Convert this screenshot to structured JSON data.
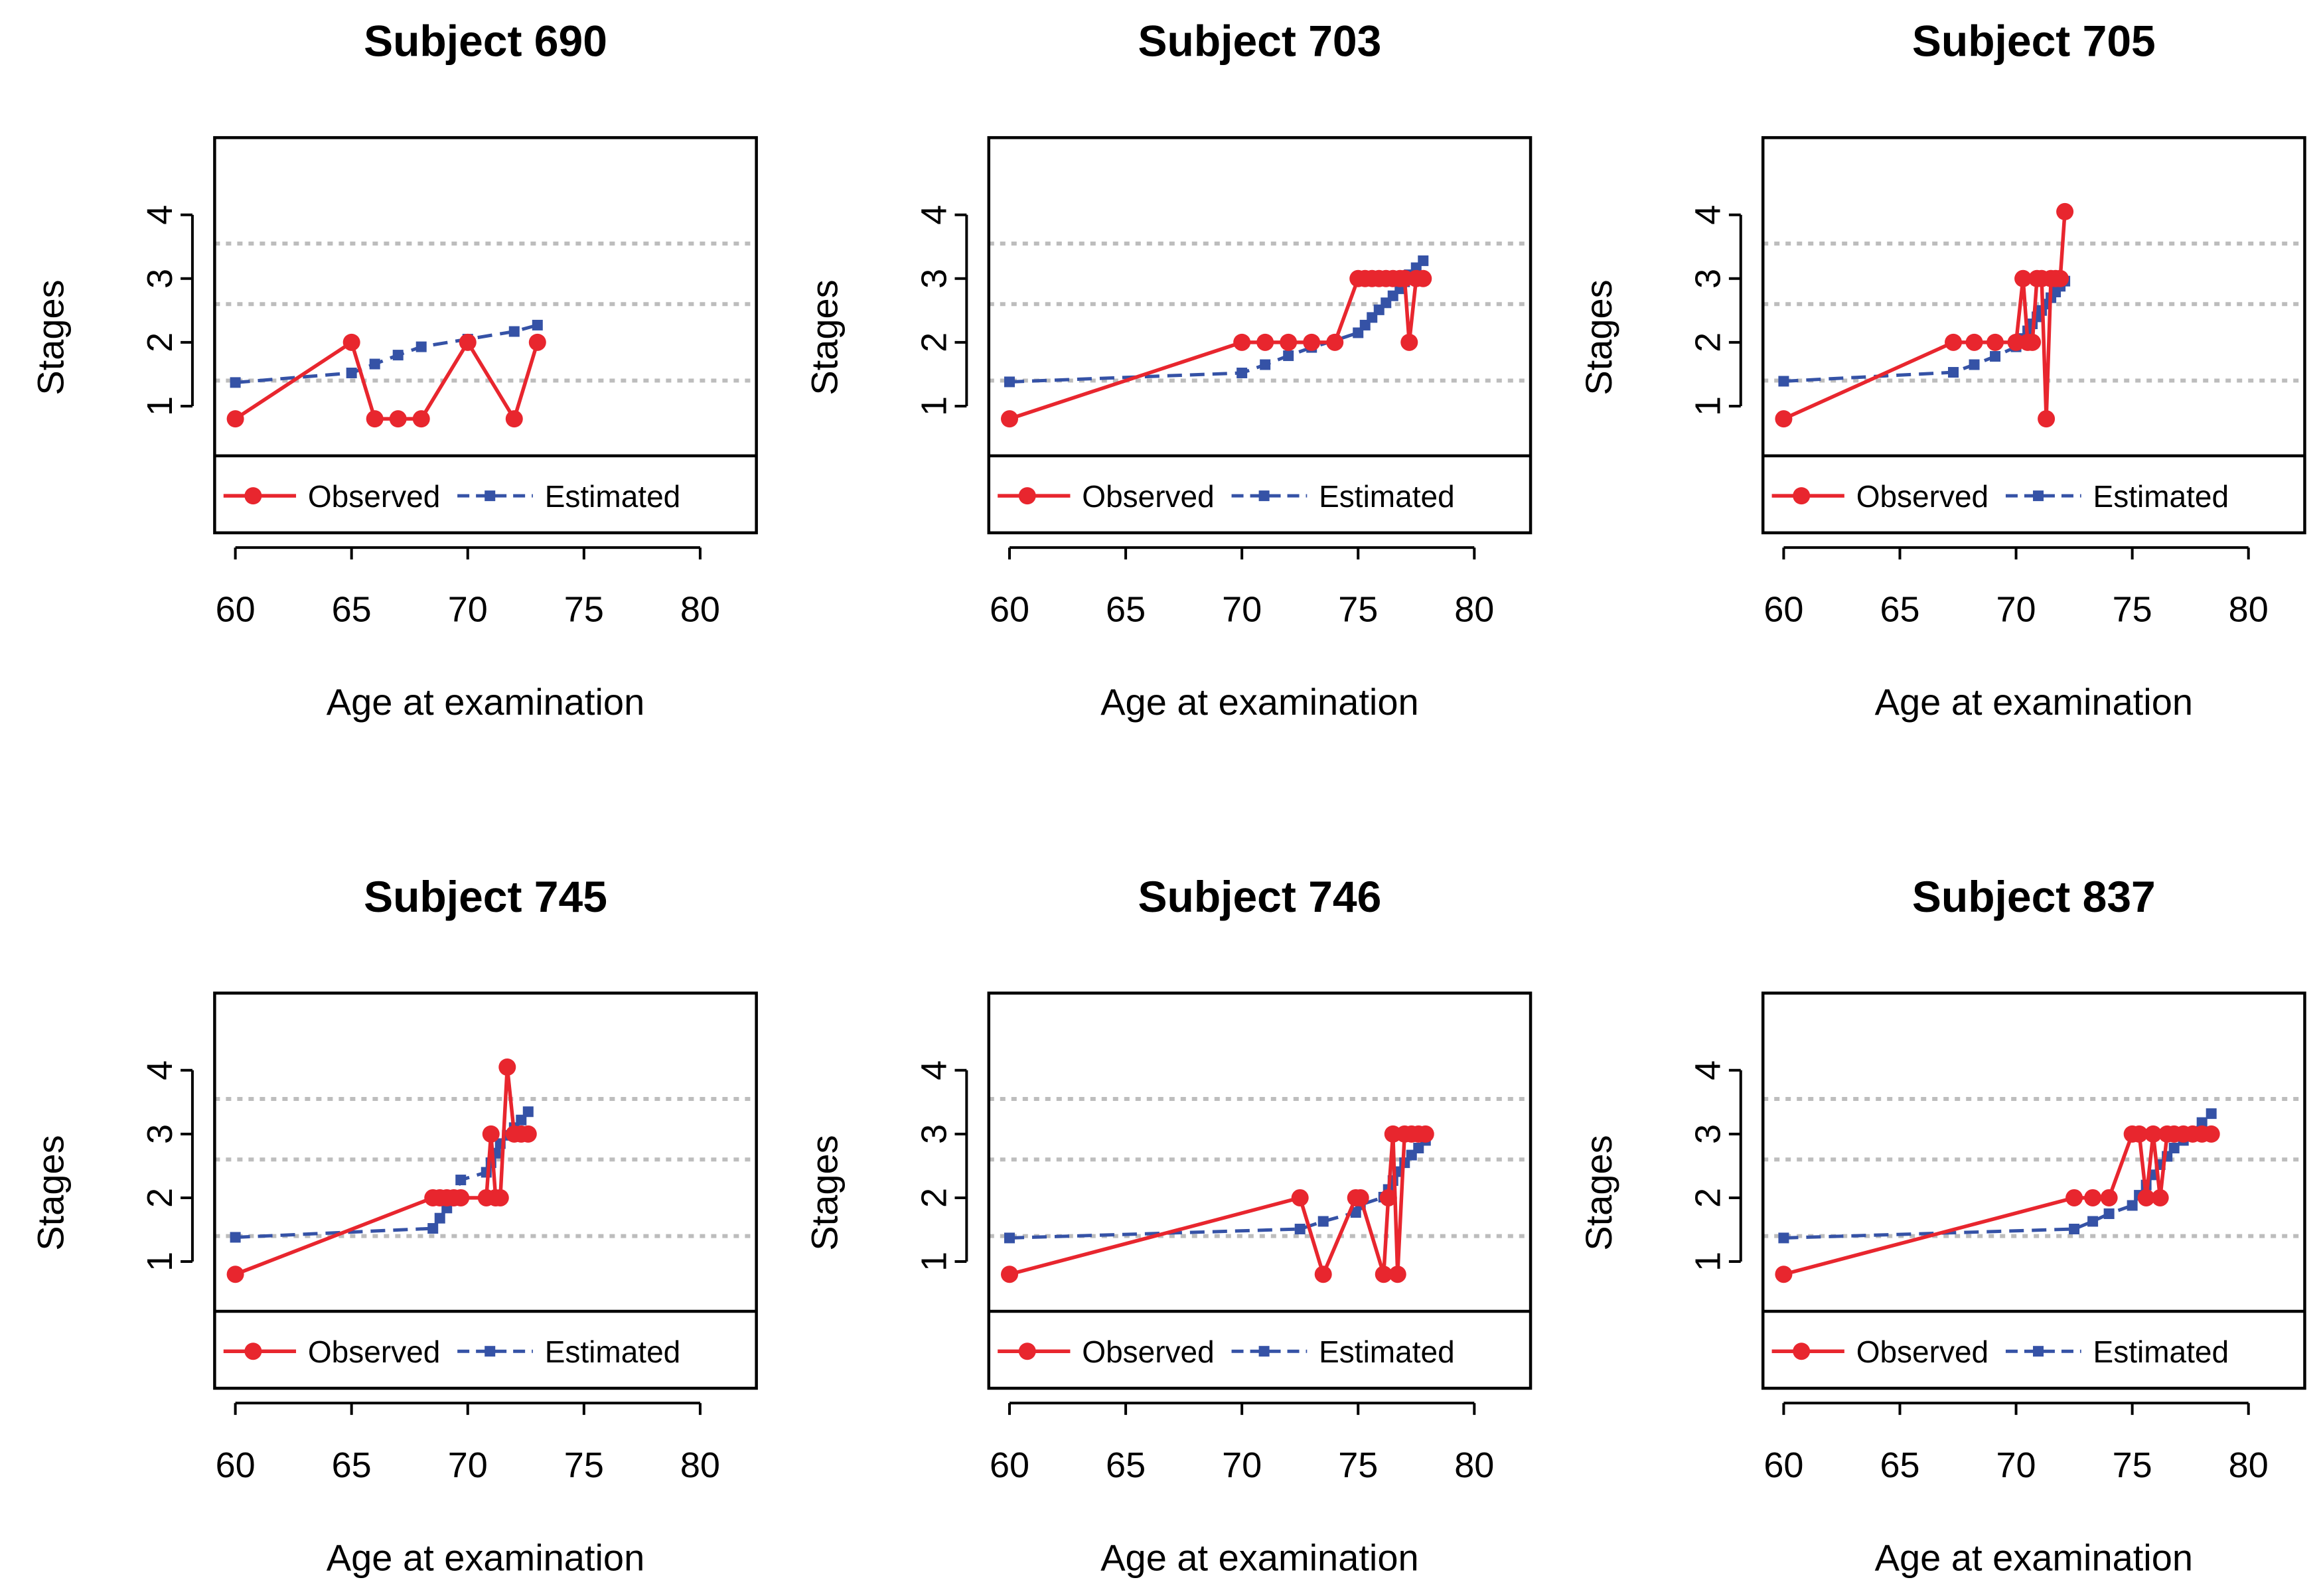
{
  "figure": {
    "colors": {
      "observed": "#e8262e",
      "estimated": "#3552a6",
      "threshold": "#bdbdbd",
      "frame": "#000000"
    }
  },
  "chart_data": [
    {
      "type": "line",
      "title": "Subject 690",
      "xlabel": "Age at examination",
      "ylabel": "Stages",
      "xlim": [
        60,
        80
      ],
      "x_ticks": [
        "60",
        "65",
        "70",
        "75",
        "80"
      ],
      "y_ticks": [
        "1",
        "2",
        "3",
        "4"
      ],
      "thresholds": [
        1.4,
        2.6,
        3.55
      ],
      "legend": {
        "observed": "Observed",
        "estimated": "Estimated"
      },
      "series": [
        {
          "name": "Observed",
          "x": [
            60,
            65,
            66,
            67,
            68,
            70,
            72,
            73
          ],
          "values": [
            0.8,
            2.0,
            0.8,
            0.8,
            0.8,
            2.0,
            0.8,
            2.0
          ]
        },
        {
          "name": "Estimated",
          "x": [
            60,
            65,
            66,
            67,
            68,
            70,
            72,
            73
          ],
          "values": [
            1.37,
            1.52,
            1.66,
            1.8,
            1.93,
            2.05,
            2.17,
            2.27
          ]
        }
      ]
    },
    {
      "type": "line",
      "title": "Subject 703",
      "xlabel": "Age at examination",
      "ylabel": "Stages",
      "xlim": [
        60,
        80
      ],
      "x_ticks": [
        "60",
        "65",
        "70",
        "75",
        "80"
      ],
      "y_ticks": [
        "1",
        "2",
        "3",
        "4"
      ],
      "thresholds": [
        1.4,
        2.6,
        3.55
      ],
      "legend": {
        "observed": "Observed",
        "estimated": "Estimated"
      },
      "series": [
        {
          "name": "Observed",
          "x": [
            60,
            70,
            71,
            72,
            73,
            74,
            75,
            75.3,
            75.6,
            75.9,
            76.2,
            76.5,
            76.8,
            77,
            77.2,
            77.5,
            77.8
          ],
          "values": [
            0.8,
            2.0,
            2.0,
            2.0,
            2.0,
            2.0,
            3.0,
            3.0,
            3.0,
            3.0,
            3.0,
            3.0,
            3.0,
            3.0,
            2.0,
            3.0,
            3.0
          ]
        },
        {
          "name": "Estimated",
          "x": [
            60,
            70,
            71,
            72,
            73,
            74,
            75,
            75.3,
            75.6,
            75.9,
            76.2,
            76.5,
            76.8,
            77,
            77.2,
            77.5,
            77.8
          ],
          "values": [
            1.38,
            1.52,
            1.65,
            1.79,
            1.92,
            2.03,
            2.15,
            2.27,
            2.39,
            2.51,
            2.62,
            2.73,
            2.84,
            2.95,
            3.06,
            3.17,
            3.28
          ]
        }
      ]
    },
    {
      "type": "line",
      "title": "Subject 705",
      "xlabel": "Age at examination",
      "ylabel": "Stages",
      "xlim": [
        60,
        80
      ],
      "x_ticks": [
        "60",
        "65",
        "70",
        "75",
        "80"
      ],
      "y_ticks": [
        "1",
        "2",
        "3",
        "4"
      ],
      "thresholds": [
        1.4,
        2.6,
        3.55
      ],
      "legend": {
        "observed": "Observed",
        "estimated": "Estimated"
      },
      "series": [
        {
          "name": "Observed",
          "x": [
            60,
            67.3,
            68.2,
            69.1,
            70,
            70.3,
            70.5,
            70.7,
            70.9,
            71.1,
            71.3,
            71.5,
            71.7,
            71.9,
            72.1
          ],
          "values": [
            0.8,
            2.0,
            2.0,
            2.0,
            2.0,
            3.0,
            2.0,
            2.0,
            3.0,
            3.0,
            0.8,
            3.0,
            3.0,
            3.0,
            4.05
          ]
        },
        {
          "name": "Estimated",
          "x": [
            60,
            67.3,
            68.2,
            69.1,
            70,
            70.3,
            70.5,
            70.7,
            70.9,
            71.1,
            71.3,
            71.5,
            71.7,
            71.9,
            72.1
          ],
          "values": [
            1.39,
            1.53,
            1.65,
            1.78,
            1.93,
            2.06,
            2.18,
            2.29,
            2.4,
            2.5,
            2.6,
            2.7,
            2.79,
            2.88,
            2.96
          ]
        }
      ]
    },
    {
      "type": "line",
      "title": "Subject 745",
      "xlabel": "Age at examination",
      "ylabel": "Stages",
      "xlim": [
        60,
        80
      ],
      "x_ticks": [
        "60",
        "65",
        "70",
        "75",
        "80"
      ],
      "y_ticks": [
        "1",
        "2",
        "3",
        "4"
      ],
      "thresholds": [
        1.4,
        2.6,
        3.55
      ],
      "legend": {
        "observed": "Observed",
        "estimated": "Estimated"
      },
      "series": [
        {
          "name": "Observed",
          "x": [
            60,
            68.5,
            68.8,
            69.1,
            69.4,
            69.7,
            70.8,
            71,
            71.2,
            71.4,
            71.7,
            72,
            72.3,
            72.6
          ],
          "values": [
            0.8,
            2.0,
            2.0,
            2.0,
            2.0,
            2.0,
            2.0,
            3.0,
            2.0,
            2.0,
            4.05,
            3.0,
            3.0,
            3.0
          ]
        },
        {
          "name": "Estimated",
          "x": [
            60,
            68.5,
            68.8,
            69.1,
            69.4,
            69.7,
            70.8,
            71,
            71.2,
            71.4,
            71.7,
            72,
            72.3,
            72.6
          ],
          "values": [
            1.38,
            1.52,
            1.68,
            1.84,
            2.0,
            2.28,
            2.4,
            2.55,
            2.7,
            2.85,
            2.98,
            3.1,
            3.22,
            3.35
          ]
        }
      ]
    },
    {
      "type": "line",
      "title": "Subject 746",
      "xlabel": "Age at examination",
      "ylabel": "Stages",
      "xlim": [
        60,
        80
      ],
      "x_ticks": [
        "60",
        "65",
        "70",
        "75",
        "80"
      ],
      "y_ticks": [
        "1",
        "2",
        "3",
        "4"
      ],
      "thresholds": [
        1.4,
        2.6,
        3.55
      ],
      "legend": {
        "observed": "Observed",
        "estimated": "Estimated"
      },
      "series": [
        {
          "name": "Observed",
          "x": [
            60,
            72.5,
            73.5,
            74.9,
            75.1,
            76.1,
            76.3,
            76.5,
            76.7,
            77,
            77.3,
            77.6,
            77.9
          ],
          "values": [
            0.8,
            2.0,
            0.8,
            2.0,
            2.0,
            0.8,
            2.0,
            3.0,
            0.8,
            3.0,
            3.0,
            3.0,
            3.0
          ]
        },
        {
          "name": "Estimated",
          "x": [
            60,
            72.5,
            73.5,
            74.9,
            75.1,
            76.1,
            76.3,
            76.5,
            76.7,
            77,
            77.3,
            77.6,
            77.9
          ],
          "values": [
            1.37,
            1.51,
            1.63,
            1.77,
            1.89,
            2.01,
            2.13,
            2.27,
            2.41,
            2.55,
            2.67,
            2.78,
            2.9
          ]
        }
      ]
    },
    {
      "type": "line",
      "title": "Subject 837",
      "xlabel": "Age at examination",
      "ylabel": "Stages",
      "xlim": [
        60,
        80
      ],
      "x_ticks": [
        "60",
        "65",
        "70",
        "75",
        "80"
      ],
      "y_ticks": [
        "1",
        "2",
        "3",
        "4"
      ],
      "thresholds": [
        1.4,
        2.6,
        3.55
      ],
      "legend": {
        "observed": "Observed",
        "estimated": "Estimated"
      },
      "series": [
        {
          "name": "Observed",
          "x": [
            60,
            72.5,
            73.3,
            74,
            75,
            75.3,
            75.6,
            75.9,
            76.2,
            76.5,
            76.8,
            77.2,
            77.6,
            78,
            78.4
          ],
          "values": [
            0.8,
            2.0,
            2.0,
            2.0,
            3.0,
            3.0,
            2.0,
            3.0,
            2.0,
            3.0,
            3.0,
            3.0,
            3.0,
            3.0,
            3.0
          ]
        },
        {
          "name": "Estimated",
          "x": [
            60,
            72.5,
            73.3,
            74,
            75,
            75.3,
            75.6,
            75.9,
            76.2,
            76.5,
            76.8,
            77.2,
            77.6,
            78,
            78.4
          ],
          "values": [
            1.37,
            1.51,
            1.63,
            1.75,
            1.88,
            2.04,
            2.2,
            2.36,
            2.52,
            2.65,
            2.78,
            2.9,
            3.03,
            3.18,
            3.32
          ]
        }
      ]
    }
  ]
}
